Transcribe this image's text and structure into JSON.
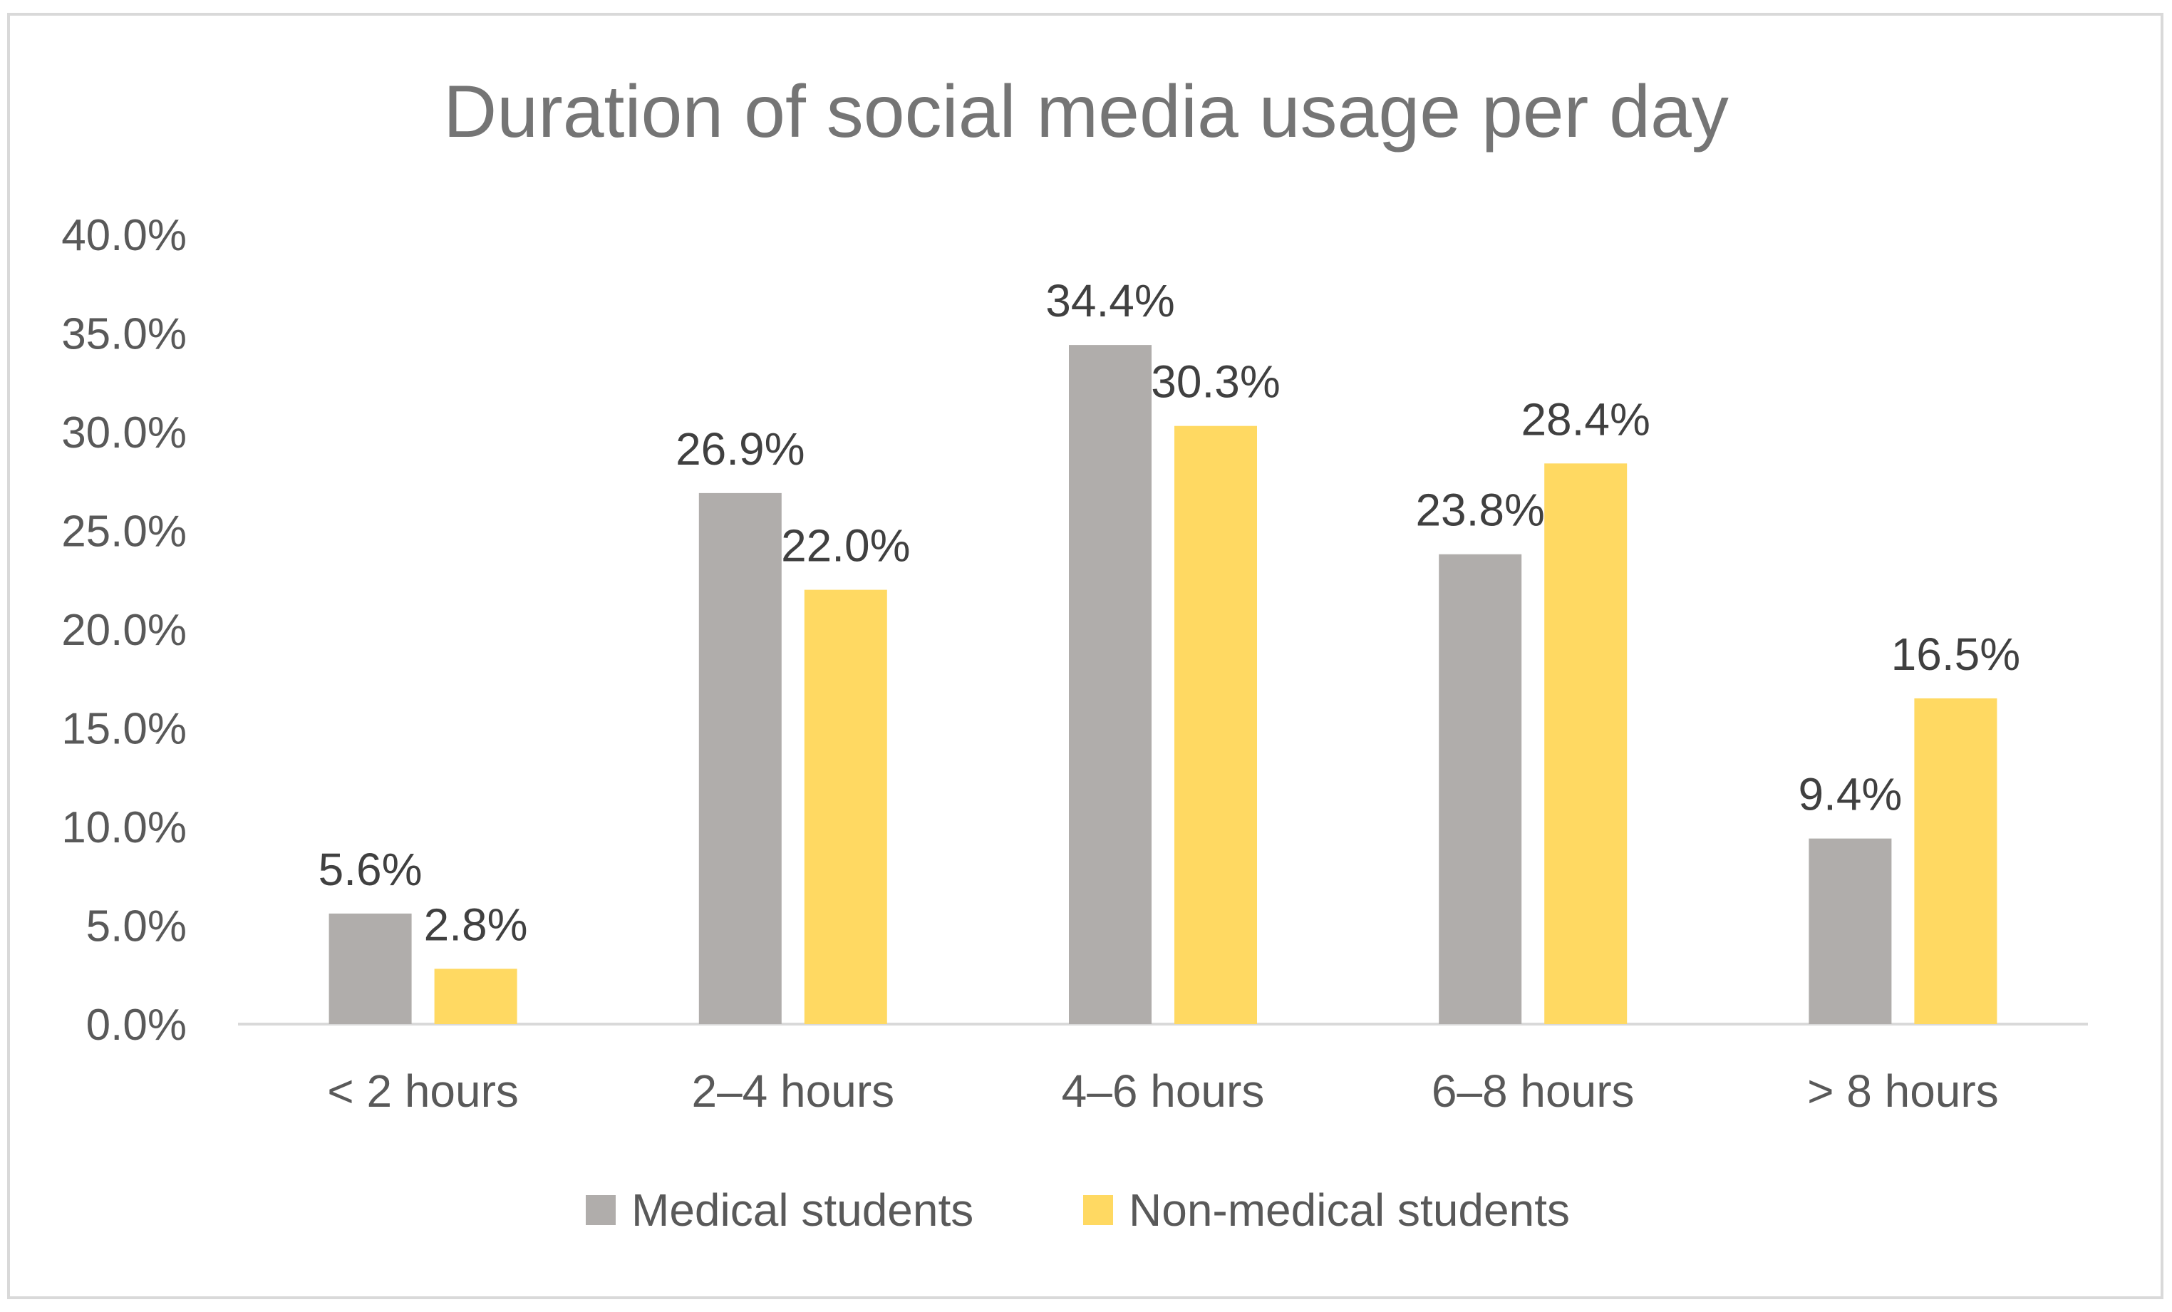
{
  "chart_data": {
    "type": "bar",
    "title": "Duration of social media usage per day",
    "xlabel": "",
    "ylabel": "",
    "categories": [
      "< 2 hours",
      "2–4 hours",
      "4–6 hours",
      "6–8 hours",
      "> 8 hours"
    ],
    "series": [
      {
        "name": "Medical students",
        "color": "#b0adab",
        "values": [
          5.6,
          26.9,
          34.4,
          23.8,
          9.4
        ],
        "labels": [
          "5.6%",
          "26.9%",
          "34.4%",
          "23.8%",
          "9.4%"
        ]
      },
      {
        "name": "Non-medical students",
        "color": "#ffd962",
        "values": [
          2.8,
          22.0,
          30.3,
          28.4,
          16.5
        ],
        "labels": [
          "2.8%",
          "22.0%",
          "30.3%",
          "28.4%",
          "16.5%"
        ]
      }
    ],
    "ylim": [
      0,
      40
    ],
    "yticks": [
      0,
      5,
      10,
      15,
      20,
      25,
      30,
      35,
      40
    ],
    "ytick_labels": [
      "0.0%",
      "5.0%",
      "10.0%",
      "15.0%",
      "20.0%",
      "25.0%",
      "30.0%",
      "35.0%",
      "40.0%"
    ],
    "grid": false,
    "legend_position": "bottom",
    "axis_color": "#d9d9d9"
  }
}
